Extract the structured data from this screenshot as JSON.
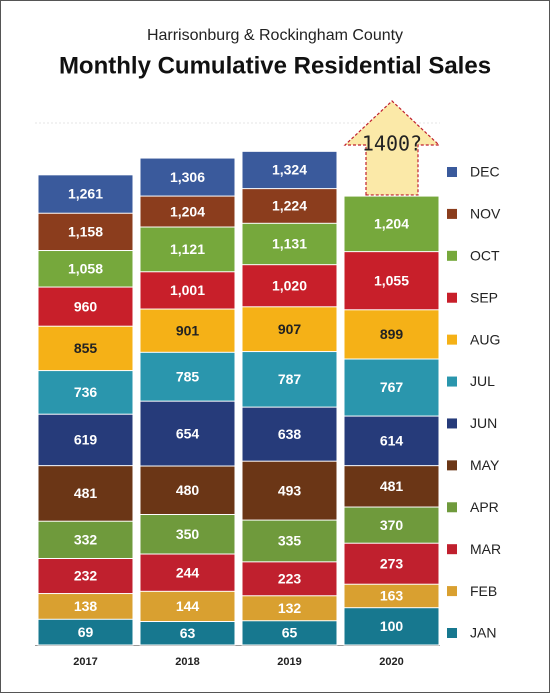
{
  "chart_data": {
    "type": "bar",
    "subtitle": "Harrisonburg & Rockingham County",
    "title": "Monthly Cumulative Residential Sales",
    "annotation": "1400?",
    "categories": [
      "2017",
      "2018",
      "2019",
      "2020"
    ],
    "ylim": [
      0,
      1400
    ],
    "series": [
      {
        "name": "JAN",
        "color": "#17788f",
        "label_color": "#ffffff",
        "values": [
          69,
          63,
          65,
          100
        ]
      },
      {
        "name": "FEB",
        "color": "#d9a030",
        "label_color": "#ffffff",
        "values": [
          138,
          144,
          132,
          163
        ]
      },
      {
        "name": "MAR",
        "color": "#c0202e",
        "label_color": "#ffffff",
        "values": [
          232,
          244,
          223,
          273
        ]
      },
      {
        "name": "APR",
        "color": "#6f9a3c",
        "label_color": "#ffffff",
        "values": [
          332,
          350,
          335,
          370
        ]
      },
      {
        "name": "MAY",
        "color": "#6b3616",
        "label_color": "#ffffff",
        "values": [
          481,
          480,
          493,
          481
        ]
      },
      {
        "name": "JUN",
        "color": "#263b7a",
        "label_color": "#ffffff",
        "values": [
          619,
          654,
          638,
          614
        ]
      },
      {
        "name": "JUL",
        "color": "#2a96ad",
        "label_color": "#ffffff",
        "values": [
          736,
          785,
          787,
          767
        ]
      },
      {
        "name": "AUG",
        "color": "#f5b117",
        "label_color": "#222222",
        "values": [
          855,
          901,
          907,
          899
        ]
      },
      {
        "name": "SEP",
        "color": "#c81f2a",
        "label_color": "#ffffff",
        "values": [
          960,
          1001,
          1020,
          1055
        ]
      },
      {
        "name": "OCT",
        "color": "#76a83c",
        "label_color": "#ffffff",
        "values": [
          1058,
          1121,
          1131,
          1204
        ]
      },
      {
        "name": "NOV",
        "color": "#8b3d1d",
        "label_color": "#ffffff",
        "values": [
          1158,
          1204,
          1224,
          null
        ]
      },
      {
        "name": "DEC",
        "color": "#3a5a9c",
        "label_color": "#ffffff",
        "values": [
          1261,
          1306,
          1324,
          null
        ]
      }
    ],
    "value_labels": [
      [
        "69",
        "63",
        "65",
        "100"
      ],
      [
        "138",
        "144",
        "132",
        "163"
      ],
      [
        "232",
        "244",
        "223",
        "273"
      ],
      [
        "332",
        "350",
        "335",
        "370"
      ],
      [
        "481",
        "480",
        "493",
        "481"
      ],
      [
        "619",
        "654",
        "638",
        "614"
      ],
      [
        "736",
        "785",
        "787",
        "767"
      ],
      [
        "855",
        "901",
        "907",
        "899"
      ],
      [
        "960",
        "1,001",
        "1,020",
        "1,055"
      ],
      [
        "1,058",
        "1,121",
        "1,131",
        "1,204"
      ],
      [
        "1,158",
        "1,204",
        "1,224",
        null
      ],
      [
        "1,261",
        "1,306",
        "1,324",
        null
      ]
    ]
  }
}
